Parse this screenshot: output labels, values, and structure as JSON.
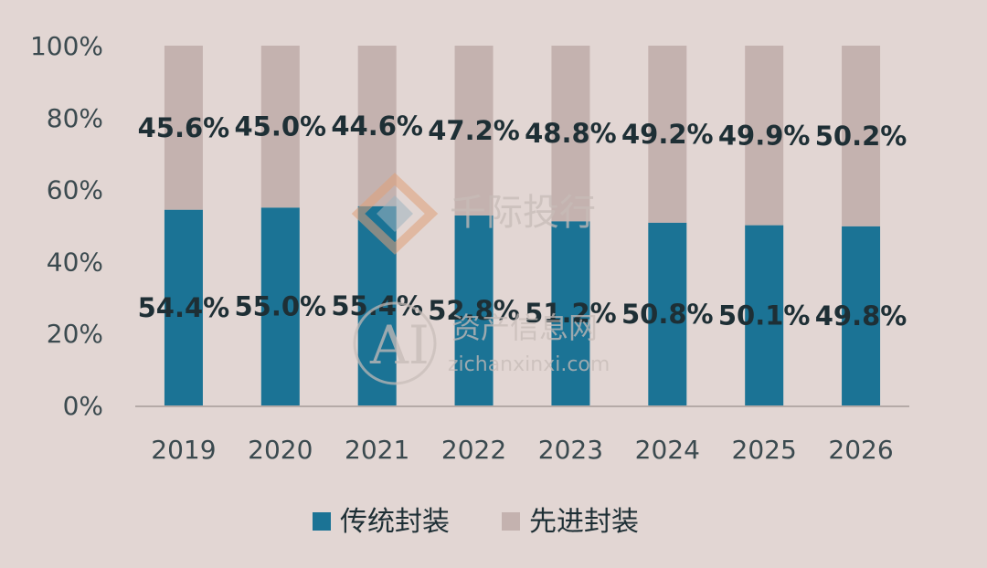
{
  "chart_data": {
    "type": "bar",
    "stacked": true,
    "categories": [
      "2019",
      "2020",
      "2021",
      "2022",
      "2023",
      "2024",
      "2025",
      "2026"
    ],
    "series": [
      {
        "name": "传统封装",
        "values": [
          54.4,
          55.0,
          55.4,
          52.8,
          51.2,
          50.8,
          50.1,
          49.8
        ],
        "color": "#1b7395"
      },
      {
        "name": "先进封装",
        "values": [
          45.6,
          45.0,
          44.6,
          47.2,
          48.8,
          49.2,
          49.9,
          50.2
        ],
        "color": "#c4b2af"
      }
    ],
    "data_labels": {
      "传统封装": [
        "54.4%",
        "55.0%",
        "55.4%",
        "52.8%",
        "51.2%",
        "50.8%",
        "50.1%",
        "49.8%"
      ],
      "先进封装": [
        "45.6%",
        "45.0%",
        "44.6%",
        "47.2%",
        "48.8%",
        "49.2%",
        "49.9%",
        "50.2%"
      ]
    },
    "y_ticks": [
      "0%",
      "20%",
      "40%",
      "60%",
      "80%",
      "100%"
    ],
    "ylim": [
      0,
      100
    ],
    "title": "",
    "xlabel": "",
    "ylabel": "",
    "grid": false,
    "legend_position": "bottom-center"
  },
  "watermarks": {
    "brand_text": "千际投行",
    "site_name": "资产信息网",
    "site_url": "zichanxinxi.com",
    "logo_text": "AI"
  }
}
